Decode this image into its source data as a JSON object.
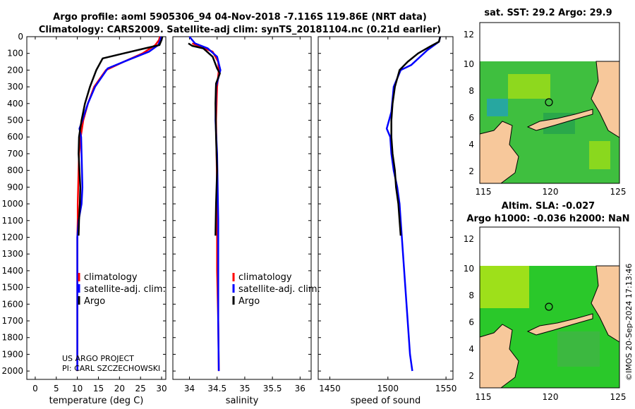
{
  "header": {
    "line1": "Argo profile: aoml 5905306_94 04-Nov-2018 -7.116S 119.86E (NRT data)",
    "line2": "Climatology: CARS2009. Satellite-adj clim: synTS_20181104.nc (0.21d earlier)"
  },
  "colors": {
    "climatology": "#ff0000",
    "satellite": "#0000ff",
    "argo": "#000000",
    "land": "#f7c89b"
  },
  "legend": {
    "climatology": "climatology",
    "satellite": "satellite-adj. clim.",
    "argo": "Argo"
  },
  "credit": {
    "line1": "US ARGO PROJECT",
    "line2": "PI: CARL SZCZECHOWSKI"
  },
  "watermark": "©IMOS 20-Sep-2024 17:13:46",
  "maps": {
    "sst_title": "sat. SST: 29.2 Argo: 29.9",
    "sla_title1": "Altim. SLA: -0.027",
    "sla_title2": "Argo h1000: -0.036 h2000: NaN",
    "xticks": [
      "115",
      "120",
      "125"
    ],
    "yticks": [
      "2",
      "4",
      "6",
      "8",
      "10",
      "12"
    ]
  },
  "chart_data": [
    {
      "type": "line",
      "xlabel": "temperature (deg C)",
      "xlim": [
        -2,
        31
      ],
      "xticks": [
        0,
        5,
        10,
        15,
        20,
        25,
        30
      ],
      "ylim": [
        0,
        2050
      ],
      "yticks": [
        0,
        100,
        200,
        300,
        400,
        500,
        600,
        700,
        800,
        900,
        1000,
        1100,
        1200,
        1300,
        1400,
        1500,
        1600,
        1700,
        1800,
        1900,
        2000
      ],
      "series": [
        {
          "name": "climatology",
          "points": [
            [
              29.6,
              0
            ],
            [
              29.4,
              20
            ],
            [
              28.5,
              50
            ],
            [
              25.5,
              100
            ],
            [
              21.0,
              150
            ],
            [
              16.8,
              200
            ],
            [
              14.0,
              300
            ],
            [
              12.5,
              400
            ],
            [
              11.4,
              500
            ],
            [
              10.8,
              600
            ],
            [
              10.4,
              700
            ],
            [
              10.3,
              800
            ],
            [
              10.2,
              900
            ],
            [
              10.1,
              1000
            ],
            [
              10.1,
              1100
            ],
            [
              10.0,
              1200
            ],
            [
              10.0,
              1400
            ],
            [
              10.0,
              1600
            ],
            [
              10.0,
              1800
            ],
            [
              10.0,
              2000
            ]
          ]
        },
        {
          "name": "satellite-adj. clim.",
          "points": [
            [
              29.9,
              0
            ],
            [
              29.7,
              20
            ],
            [
              29.2,
              50
            ],
            [
              27.0,
              90
            ],
            [
              22.0,
              140
            ],
            [
              17.2,
              190
            ],
            [
              14.2,
              300
            ],
            [
              12.5,
              400
            ],
            [
              11.2,
              500
            ],
            [
              10.5,
              550
            ],
            [
              10.9,
              600
            ],
            [
              11.0,
              700
            ],
            [
              11.1,
              800
            ],
            [
              11.2,
              900
            ],
            [
              11.0,
              1000
            ],
            [
              10.3,
              1100
            ],
            [
              10.0,
              1200
            ],
            [
              10.0,
              1400
            ],
            [
              10.0,
              1600
            ],
            [
              10.0,
              1800
            ],
            [
              10.0,
              2000
            ]
          ]
        },
        {
          "name": "Argo",
          "points": [
            [
              30.2,
              0
            ],
            [
              30.0,
              20
            ],
            [
              29.5,
              50
            ],
            [
              26.0,
              70
            ],
            [
              21.0,
              100
            ],
            [
              16.0,
              130
            ],
            [
              14.5,
              200
            ],
            [
              13.0,
              300
            ],
            [
              11.8,
              400
            ],
            [
              11.0,
              500
            ],
            [
              10.4,
              600
            ],
            [
              10.3,
              700
            ],
            [
              10.5,
              800
            ],
            [
              10.7,
              900
            ],
            [
              10.6,
              1000
            ],
            [
              10.4,
              1100
            ],
            [
              10.3,
              1190
            ]
          ]
        }
      ]
    },
    {
      "type": "line",
      "xlabel": "salinity",
      "xlim": [
        33.7,
        36.2
      ],
      "xticks": [
        34,
        34.5,
        35,
        35.5,
        36
      ],
      "ylim": [
        0,
        2050
      ],
      "series": [
        {
          "name": "climatology",
          "points": [
            [
              34.05,
              40
            ],
            [
              34.2,
              60
            ],
            [
              34.42,
              90
            ],
            [
              34.52,
              150
            ],
            [
              34.53,
              200
            ],
            [
              34.5,
              300
            ],
            [
              34.48,
              500
            ],
            [
              34.49,
              700
            ],
            [
              34.5,
              900
            ],
            [
              34.5,
              1100
            ],
            [
              34.5,
              1400
            ],
            [
              34.52,
              1700
            ],
            [
              34.53,
              2000
            ]
          ]
        },
        {
          "name": "satellite-adj. clim.",
          "points": [
            [
              34.0,
              0
            ],
            [
              34.1,
              40
            ],
            [
              34.33,
              70
            ],
            [
              34.5,
              120
            ],
            [
              34.56,
              200
            ],
            [
              34.48,
              300
            ],
            [
              34.47,
              500
            ],
            [
              34.5,
              700
            ],
            [
              34.51,
              900
            ],
            [
              34.52,
              1100
            ],
            [
              34.52,
              1400
            ],
            [
              34.52,
              1700
            ],
            [
              34.53,
              2000
            ]
          ]
        },
        {
          "name": "Argo",
          "points": [
            [
              33.98,
              40
            ],
            [
              34.05,
              55
            ],
            [
              34.25,
              70
            ],
            [
              34.42,
              120
            ],
            [
              34.5,
              190
            ],
            [
              34.55,
              220
            ],
            [
              34.48,
              280
            ],
            [
              34.47,
              400
            ],
            [
              34.48,
              600
            ],
            [
              34.5,
              800
            ],
            [
              34.48,
              1000
            ],
            [
              34.47,
              1190
            ]
          ]
        }
      ]
    },
    {
      "type": "line",
      "xlabel": "speed of sound",
      "xlim": [
        1440,
        1556
      ],
      "xticks": [
        1450,
        1500,
        1550
      ],
      "ylim": [
        0,
        2050
      ],
      "series": [
        {
          "name": "satellite-adj. clim.",
          "points": [
            [
              1545,
              0
            ],
            [
              1544,
              30
            ],
            [
              1534,
              80
            ],
            [
              1520,
              170
            ],
            [
              1511,
              200
            ],
            [
              1505,
              300
            ],
            [
              1503,
              450
            ],
            [
              1499,
              550
            ],
            [
              1502,
              600
            ],
            [
              1503,
              700
            ],
            [
              1505,
              800
            ],
            [
              1508,
              900
            ],
            [
              1510,
              1000
            ],
            [
              1511,
              1100
            ],
            [
              1513,
              1300
            ],
            [
              1515,
              1500
            ],
            [
              1517,
              1700
            ],
            [
              1519,
              1900
            ],
            [
              1521,
              2000
            ]
          ]
        },
        {
          "name": "Argo",
          "points": [
            [
              1545,
              0
            ],
            [
              1544,
              30
            ],
            [
              1536,
              60
            ],
            [
              1526,
              100
            ],
            [
              1517,
              150
            ],
            [
              1510,
              200
            ],
            [
              1506,
              300
            ],
            [
              1504,
              400
            ],
            [
              1503,
              500
            ],
            [
              1503,
              600
            ],
            [
              1504,
              700
            ],
            [
              1506,
              800
            ],
            [
              1507,
              900
            ],
            [
              1509,
              1000
            ],
            [
              1510,
              1100
            ],
            [
              1511,
              1190
            ]
          ]
        }
      ]
    }
  ]
}
